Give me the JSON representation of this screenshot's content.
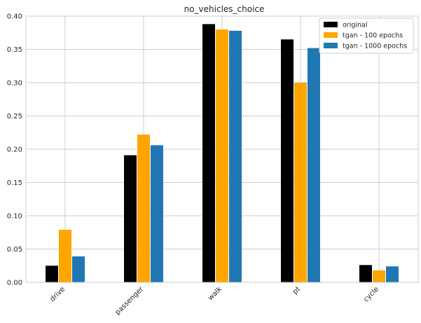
{
  "chart_data": {
    "type": "bar",
    "title": "no_vehicles_choice",
    "xlabel": "",
    "ylabel": "",
    "categories": [
      "drive",
      "passenger",
      "walk",
      "pt",
      "cycle"
    ],
    "series": [
      {
        "name": "original",
        "color": "#000000",
        "values": [
          0.025,
          0.191,
          0.388,
          0.365,
          0.026
        ]
      },
      {
        "name": "tgan - 100 epochs",
        "color": "#ffa500",
        "values": [
          0.079,
          0.222,
          0.38,
          0.3,
          0.018
        ]
      },
      {
        "name": "tgan - 1000 epochs",
        "color": "#1f77b4",
        "values": [
          0.039,
          0.206,
          0.378,
          0.352,
          0.024
        ]
      }
    ],
    "ylim": [
      0,
      0.4
    ],
    "yticks": [
      0.0,
      0.05,
      0.1,
      0.15,
      0.2,
      0.25,
      0.3,
      0.35,
      0.4
    ],
    "ytick_labels": [
      "0.00",
      "0.05",
      "0.10",
      "0.15",
      "0.20",
      "0.25",
      "0.30",
      "0.35",
      "0.40"
    ],
    "grid": true,
    "legend_position": "top-right"
  }
}
